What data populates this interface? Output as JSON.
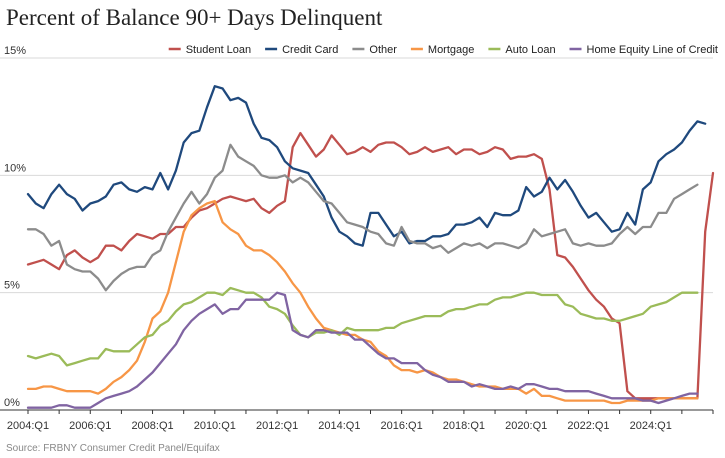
{
  "chart_data": {
    "type": "line",
    "title": "Percent of Balance 90+ Days Delinquent",
    "source": "Source: FRBNY Consumer Credit Panel/Equifax",
    "xlabel": "",
    "ylabel": "",
    "ylim": [
      0,
      15
    ],
    "yticks": [
      0,
      5,
      10,
      15
    ],
    "ytick_labels": [
      "0%",
      "5%",
      "10%",
      "15%"
    ],
    "x_start": "2004:Q1",
    "x_step_quarters": 1,
    "xticks_index": [
      0,
      8,
      16,
      24,
      32,
      40,
      48,
      56,
      64,
      72,
      80
    ],
    "xtick_labels": [
      "2004:Q1",
      "2006:Q1",
      "2008:Q1",
      "2010:Q1",
      "2012:Q1",
      "2014:Q1",
      "2016:Q1",
      "2018:Q1",
      "2020:Q1",
      "2022:Q1",
      "2024:Q1"
    ],
    "grid": true,
    "legend_position": "top-right",
    "series": [
      {
        "name": "Student Loan",
        "color": "#c0504d",
        "values": [
          6.2,
          6.3,
          6.4,
          6.2,
          6.0,
          6.6,
          6.8,
          6.5,
          6.3,
          6.5,
          7.0,
          7.0,
          6.8,
          7.2,
          7.5,
          7.4,
          7.3,
          7.5,
          7.5,
          7.8,
          7.8,
          8.2,
          8.5,
          8.6,
          8.8,
          9.0,
          9.1,
          9.0,
          8.9,
          9.0,
          8.6,
          8.4,
          8.7,
          8.9,
          11.2,
          11.8,
          11.3,
          10.8,
          11.1,
          11.7,
          11.3,
          10.9,
          11.0,
          11.2,
          11.0,
          11.3,
          11.4,
          11.4,
          11.2,
          10.9,
          11.0,
          11.2,
          11.0,
          11.1,
          11.2,
          10.9,
          11.1,
          11.1,
          10.9,
          11.0,
          11.2,
          11.1,
          10.7,
          10.8,
          10.8,
          10.9,
          10.7,
          9.4,
          6.6,
          6.5,
          6.1,
          5.6,
          5.1,
          4.7,
          4.4,
          3.9,
          3.7,
          0.8,
          0.5,
          0.5,
          0.5,
          0.5,
          0.5,
          0.5,
          0.5,
          0.5,
          0.5,
          7.6,
          10.1
        ]
      },
      {
        "name": "Credit Card",
        "color": "#1f497d",
        "values": [
          9.2,
          8.8,
          8.6,
          9.2,
          9.6,
          9.2,
          9.0,
          8.5,
          8.8,
          8.9,
          9.1,
          9.6,
          9.7,
          9.4,
          9.3,
          9.5,
          9.4,
          10.1,
          9.4,
          10.2,
          11.4,
          11.8,
          11.9,
          12.9,
          13.8,
          13.7,
          13.2,
          13.3,
          13.1,
          12.2,
          11.6,
          11.5,
          11.2,
          10.6,
          10.3,
          10.2,
          10.1,
          9.6,
          9.1,
          8.2,
          7.6,
          7.4,
          7.1,
          7.0,
          8.4,
          8.4,
          7.9,
          7.4,
          7.6,
          7.1,
          7.2,
          7.2,
          7.4,
          7.4,
          7.5,
          7.9,
          7.9,
          8.0,
          8.2,
          7.8,
          8.4,
          8.3,
          8.3,
          8.5,
          9.5,
          9.1,
          9.3,
          9.9,
          9.4,
          9.8,
          9.3,
          8.7,
          8.2,
          8.4,
          8.0,
          7.6,
          7.7,
          8.4,
          7.9,
          9.4,
          9.7,
          10.6,
          10.9,
          11.1,
          11.4,
          11.9,
          12.3,
          12.2
        ]
      },
      {
        "name": "Other",
        "color": "#8c8c8c",
        "values": [
          7.7,
          7.7,
          7.5,
          7.0,
          7.2,
          6.2,
          6.0,
          5.9,
          5.9,
          5.6,
          5.1,
          5.5,
          5.8,
          6.0,
          6.1,
          6.1,
          6.6,
          6.8,
          7.6,
          8.2,
          8.8,
          9.3,
          8.8,
          9.2,
          9.9,
          10.2,
          11.3,
          10.8,
          10.6,
          10.4,
          10.0,
          9.9,
          9.9,
          10.0,
          9.7,
          9.9,
          9.7,
          9.3,
          8.9,
          8.8,
          8.4,
          8.0,
          7.9,
          7.8,
          7.6,
          7.5,
          7.1,
          7.0,
          7.8,
          7.2,
          7.1,
          7.1,
          6.9,
          7.0,
          6.7,
          6.9,
          7.1,
          7.0,
          7.1,
          6.9,
          7.1,
          7.1,
          7.0,
          6.9,
          7.1,
          7.7,
          7.4,
          7.5,
          7.6,
          7.7,
          7.1,
          7.0,
          7.1,
          7.0,
          7.0,
          7.1,
          7.5,
          7.8,
          7.5,
          7.8,
          7.8,
          8.4,
          8.4,
          9.0,
          9.2,
          9.4,
          9.6
        ]
      },
      {
        "name": "Mortgage",
        "color": "#f79646",
        "values": [
          0.9,
          0.9,
          1.0,
          1.0,
          0.9,
          0.8,
          0.8,
          0.8,
          0.8,
          0.7,
          0.9,
          1.2,
          1.4,
          1.7,
          2.1,
          2.9,
          3.9,
          4.2,
          5.0,
          6.3,
          7.6,
          8.3,
          8.6,
          8.8,
          8.9,
          8.0,
          7.7,
          7.5,
          7.0,
          6.8,
          6.8,
          6.6,
          6.3,
          5.9,
          5.4,
          5.0,
          4.4,
          3.9,
          3.5,
          3.4,
          3.3,
          3.2,
          3.2,
          3.0,
          2.9,
          2.5,
          2.3,
          1.9,
          1.7,
          1.7,
          1.6,
          1.7,
          1.6,
          1.4,
          1.3,
          1.3,
          1.2,
          1.1,
          1.0,
          1.0,
          1.0,
          0.9,
          0.9,
          0.9,
          0.7,
          0.9,
          0.6,
          0.6,
          0.5,
          0.4,
          0.4,
          0.4,
          0.4,
          0.4,
          0.4,
          0.3,
          0.3,
          0.4,
          0.4,
          0.4,
          0.4,
          0.5,
          0.5,
          0.5,
          0.5,
          0.5,
          0.5
        ]
      },
      {
        "name": "Auto Loan",
        "color": "#9bbb59",
        "values": [
          2.3,
          2.2,
          2.3,
          2.4,
          2.3,
          1.9,
          2.0,
          2.1,
          2.2,
          2.2,
          2.6,
          2.5,
          2.5,
          2.5,
          2.8,
          3.1,
          3.2,
          3.6,
          3.8,
          4.2,
          4.5,
          4.6,
          4.8,
          5.0,
          5.0,
          4.9,
          5.2,
          5.1,
          5.0,
          5.0,
          4.8,
          4.4,
          4.3,
          4.1,
          3.6,
          3.2,
          3.1,
          3.3,
          3.3,
          3.4,
          3.2,
          3.5,
          3.4,
          3.4,
          3.4,
          3.4,
          3.5,
          3.5,
          3.7,
          3.8,
          3.9,
          4.0,
          4.0,
          4.0,
          4.2,
          4.3,
          4.3,
          4.4,
          4.5,
          4.5,
          4.7,
          4.8,
          4.8,
          4.9,
          5.0,
          5.0,
          4.9,
          4.9,
          4.9,
          4.5,
          4.4,
          4.1,
          4.0,
          3.9,
          3.9,
          3.8,
          3.8,
          3.9,
          4.0,
          4.1,
          4.4,
          4.5,
          4.6,
          4.8,
          5.0,
          5.0,
          5.0
        ]
      },
      {
        "name": "Home Equity Line of Credit",
        "color": "#8064a2",
        "values": [
          0.1,
          0.1,
          0.1,
          0.1,
          0.2,
          0.2,
          0.1,
          0.1,
          0.1,
          0.3,
          0.5,
          0.6,
          0.7,
          0.8,
          1.0,
          1.3,
          1.6,
          2.0,
          2.4,
          2.8,
          3.4,
          3.8,
          4.1,
          4.3,
          4.5,
          4.1,
          4.3,
          4.3,
          4.7,
          4.7,
          4.7,
          4.7,
          5.0,
          4.9,
          3.4,
          3.2,
          3.1,
          3.4,
          3.4,
          3.3,
          3.3,
          3.3,
          3.0,
          3.0,
          2.7,
          2.4,
          2.2,
          2.2,
          2.0,
          2.0,
          2.0,
          1.7,
          1.5,
          1.4,
          1.2,
          1.2,
          1.2,
          1.0,
          1.1,
          1.0,
          0.9,
          0.9,
          1.0,
          0.9,
          1.1,
          1.1,
          1.0,
          0.9,
          0.9,
          0.8,
          0.8,
          0.8,
          0.8,
          0.7,
          0.6,
          0.5,
          0.5,
          0.5,
          0.5,
          0.4,
          0.4,
          0.3,
          0.4,
          0.5,
          0.6,
          0.7,
          0.7
        ]
      }
    ]
  }
}
